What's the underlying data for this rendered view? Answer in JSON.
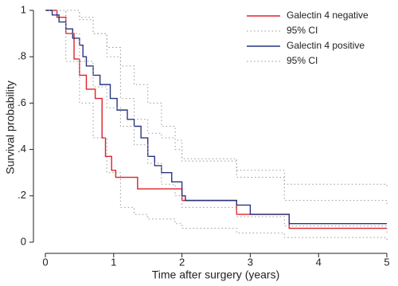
{
  "chart_data": {
    "type": "step",
    "xlabel": "Time after surgery (years)",
    "ylabel": "Survival probability",
    "xlim": [
      0,
      5
    ],
    "xticks": [
      0,
      1,
      2,
      3,
      4,
      5
    ],
    "ylim": [
      0,
      1
    ],
    "yticks": [
      0,
      {
        "value": 0.2,
        "label": ".2"
      },
      {
        "value": 0.4,
        "label": ".4"
      },
      {
        "value": 0.6,
        "label": ".6"
      },
      {
        "value": 0.8,
        "label": ".8"
      },
      1
    ],
    "legend": "upper right",
    "series": [
      {
        "name": "Galectin 4 negative",
        "color": "#e0202a",
        "style": "solid",
        "x": [
          0,
          0.17,
          0.3,
          0.42,
          0.5,
          0.6,
          0.73,
          0.83,
          0.88,
          0.97,
          1.03,
          1.35,
          2.0,
          2.8,
          3.57,
          5
        ],
        "values": [
          1,
          0.97,
          0.9,
          0.79,
          0.72,
          0.66,
          0.62,
          0.45,
          0.37,
          0.31,
          0.28,
          0.23,
          0.18,
          0.12,
          0.06,
          0.06
        ]
      },
      {
        "name": "95% CI",
        "color": "#999999",
        "style": "dotted",
        "x": [
          0,
          0.3,
          0.5,
          0.7,
          0.9,
          1.1,
          1.3,
          1.5,
          1.7,
          1.9,
          2.0,
          2.8,
          3.5,
          5
        ],
        "values": [
          1,
          1,
          0.97,
          0.9,
          0.8,
          0.62,
          0.53,
          0.47,
          0.45,
          0.4,
          0.35,
          0.28,
          0.18,
          0.16
        ]
      },
      {
        "name": "Galectin 4 positive",
        "color": "#2a3580",
        "style": "solid",
        "x": [
          0,
          0.1,
          0.2,
          0.3,
          0.4,
          0.5,
          0.55,
          0.6,
          0.7,
          0.8,
          0.95,
          1.05,
          1.2,
          1.3,
          1.4,
          1.5,
          1.6,
          1.7,
          1.85,
          2.0,
          2.05,
          2.8,
          3.0,
          3.57,
          5
        ],
        "values": [
          1,
          0.98,
          0.95,
          0.92,
          0.88,
          0.85,
          0.8,
          0.76,
          0.72,
          0.68,
          0.62,
          0.57,
          0.53,
          0.5,
          0.45,
          0.37,
          0.33,
          0.3,
          0.26,
          0.2,
          0.18,
          0.16,
          0.12,
          0.08,
          0.08
        ]
      },
      {
        "name": "95% CI",
        "color": "#999999",
        "style": "dotted",
        "x": [
          0,
          0.3,
          0.5,
          0.7,
          0.9,
          1.1,
          1.3,
          1.5,
          1.7,
          1.9,
          2.0,
          2.8,
          3.5,
          5
        ],
        "values": [
          1,
          0.9,
          0.78,
          0.67,
          0.58,
          0.5,
          0.42,
          0.34,
          0.25,
          0.2,
          0.15,
          0.11,
          0.07,
          0.04
        ]
      },
      {
        "name": "95% CI",
        "color": "#999999",
        "style": "dotted",
        "x": [
          0,
          0.3,
          0.5,
          0.7,
          0.9,
          1.1,
          1.3,
          1.5,
          1.7,
          1.9,
          2.0,
          2.8,
          3.5,
          5
        ],
        "values": [
          1,
          1,
          0.96,
          0.9,
          0.84,
          0.76,
          0.68,
          0.6,
          0.5,
          0.44,
          0.36,
          0.31,
          0.25,
          0.24
        ]
      },
      {
        "name": "95% CI",
        "color": "#999999",
        "style": "dotted",
        "x": [
          0,
          0.3,
          0.5,
          0.7,
          0.9,
          1.1,
          1.3,
          1.5,
          1.7,
          1.9,
          2.0,
          2.8,
          3.5,
          5
        ],
        "values": [
          1,
          0.78,
          0.6,
          0.45,
          0.3,
          0.15,
          0.12,
          0.1,
          0.1,
          0.08,
          0.06,
          0.04,
          0.02,
          0.01
        ]
      }
    ]
  }
}
